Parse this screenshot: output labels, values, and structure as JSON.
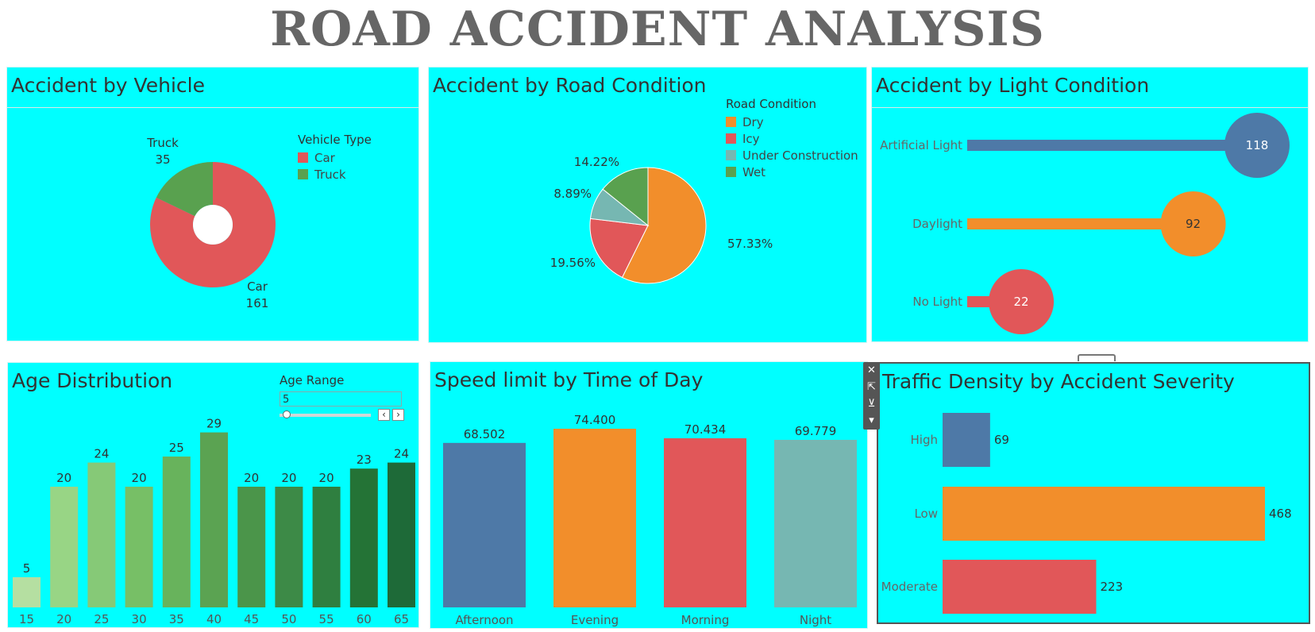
{
  "dashboard_title": "ROAD ACCIDENT ANALYSIS",
  "colors": {
    "panel_bg": "#00ffff",
    "blue": "#4e79a7",
    "orange": "#f28e2b",
    "red": "#e15759",
    "teal": "#76b7b2",
    "green": "#59a14f"
  },
  "toolbar": {
    "icons": [
      "close-icon",
      "popout-icon",
      "filter-icon",
      "more-icon"
    ],
    "close": "✕",
    "popout": "⇱",
    "filter": "⊻",
    "more": "▾"
  },
  "vehicle": {
    "title": "Accident by Vehicle",
    "legend_title": "Vehicle Type",
    "chart_data": {
      "type": "pie",
      "donut": true,
      "legend": "right",
      "slices": [
        {
          "label": "Car",
          "value": 161,
          "color": "#e15759"
        },
        {
          "label": "Truck",
          "value": 35,
          "color": "#59a14f"
        }
      ]
    }
  },
  "road": {
    "title": "Accident by Road Condition",
    "legend_title": "Road Condition",
    "chart_data": {
      "type": "pie",
      "legend": "top-right",
      "slices": [
        {
          "label": "Dry",
          "value": 57.33,
          "text": "57.33%",
          "color": "#f28e2b"
        },
        {
          "label": "Icy",
          "value": 19.56,
          "text": "19.56%",
          "color": "#e15759"
        },
        {
          "label": "Under Construction",
          "value": 8.89,
          "text": "8.89%",
          "color": "#76b7b2"
        },
        {
          "label": "Wet",
          "value": 14.22,
          "text": "14.22%",
          "color": "#59a14f"
        }
      ]
    }
  },
  "light": {
    "title": "Accident by Light Condition",
    "chart_data": {
      "type": "bar",
      "orientation": "horizontal",
      "style": "lollipop",
      "categories": [
        "Artificial Light",
        "Daylight",
        "No Light"
      ],
      "values": [
        118,
        92,
        22
      ],
      "colors": [
        "#4e79a7",
        "#f28e2b",
        "#e15759"
      ]
    }
  },
  "age": {
    "title": "Age Distribution",
    "filter": {
      "label": "Age Range",
      "value": "5"
    },
    "chart_data": {
      "type": "bar",
      "categories": [
        "15",
        "20",
        "25",
        "30",
        "35",
        "40",
        "45",
        "50",
        "55",
        "60",
        "65"
      ],
      "values": [
        5,
        20,
        24,
        20,
        25,
        29,
        20,
        20,
        20,
        23,
        24
      ],
      "color_scale": "green-sequential",
      "colors": [
        "#b5dfa1",
        "#98d585",
        "#86c977",
        "#77bf66",
        "#68b35c",
        "#5ba352",
        "#4b954a",
        "#3d8a47",
        "#2f7f40",
        "#247336",
        "#1e6a38"
      ]
    }
  },
  "speed": {
    "title": "Speed limit by Time of Day",
    "chart_data": {
      "type": "bar",
      "categories": [
        "Afternoon",
        "Evening",
        "Morning",
        "Night"
      ],
      "values": [
        68.502,
        74.4,
        70.434,
        69.779
      ],
      "labels": [
        "68.502",
        "74.400",
        "70.434",
        "69.779"
      ],
      "colors": [
        "#4e79a7",
        "#f28e2b",
        "#e15759",
        "#76b7b2"
      ],
      "ylim": [
        0,
        80
      ]
    }
  },
  "traffic": {
    "title": "Traffic Density by Accident Severity",
    "chart_data": {
      "type": "bar",
      "orientation": "horizontal",
      "categories": [
        "High",
        "Low",
        "Moderate"
      ],
      "values": [
        69,
        468,
        223
      ],
      "colors": [
        "#4e79a7",
        "#f28e2b",
        "#e15759"
      ]
    }
  }
}
